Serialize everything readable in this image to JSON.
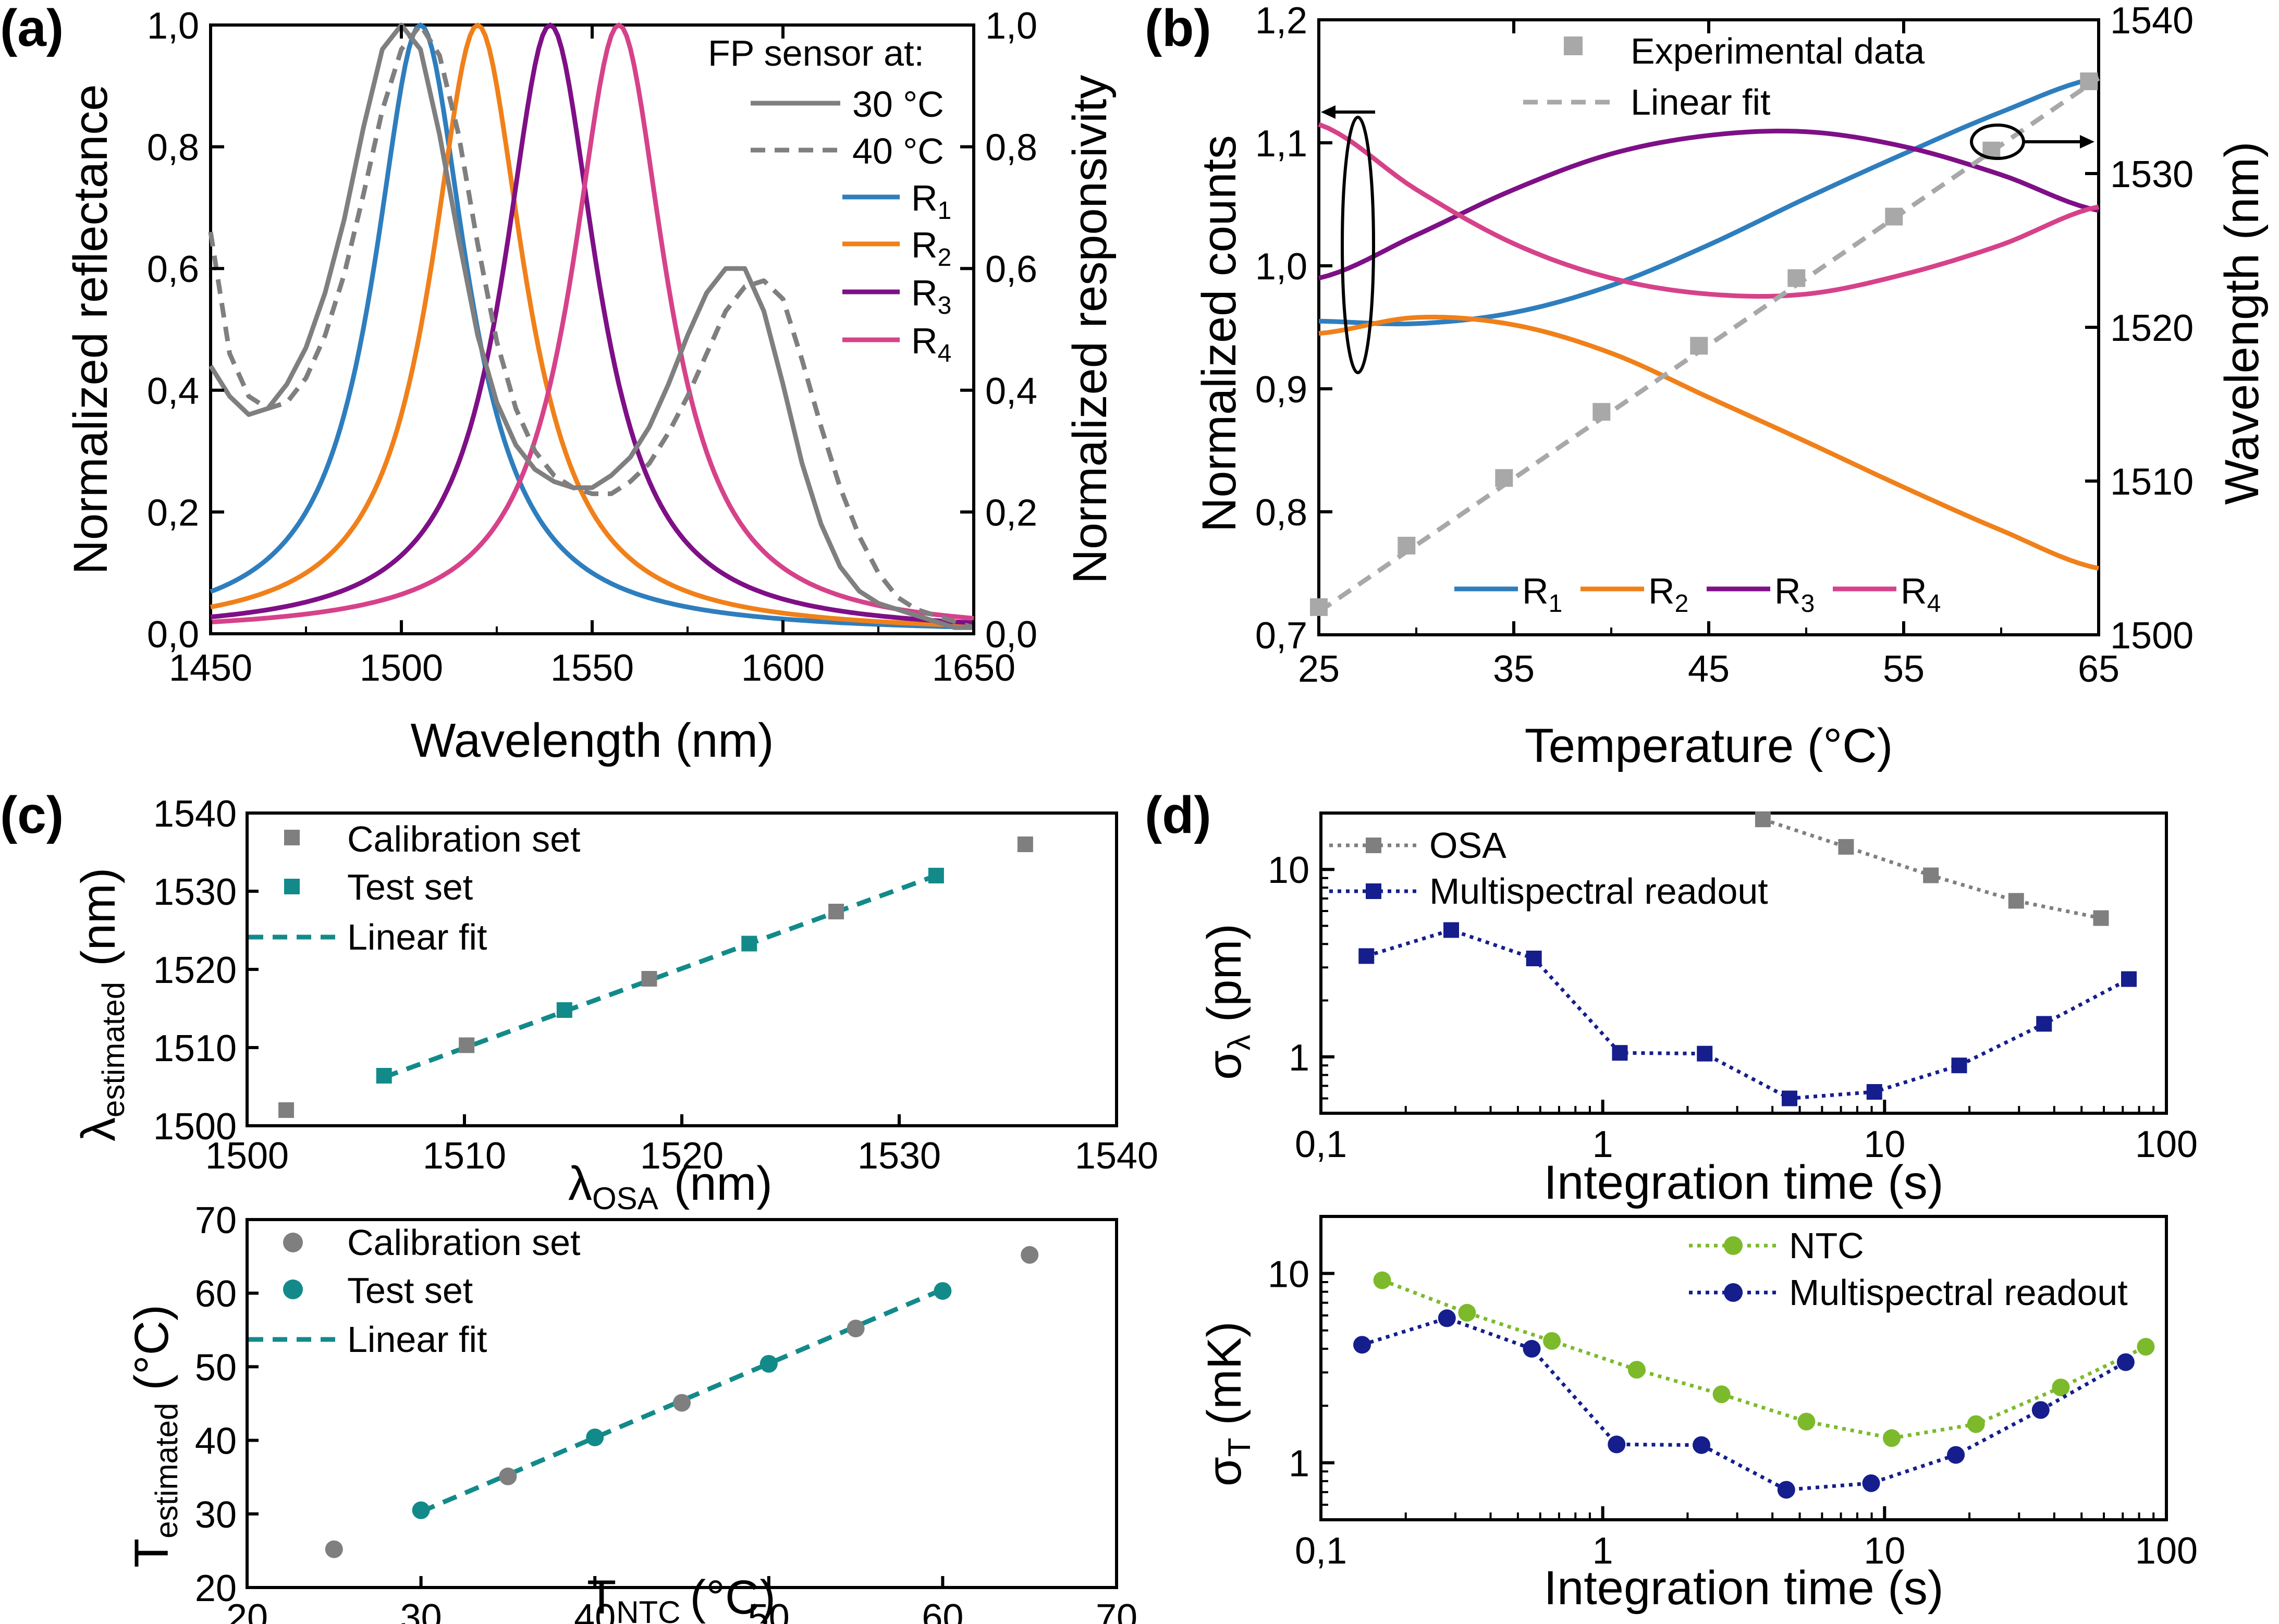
{
  "panels": {
    "a": "(a)",
    "b": "(b)",
    "c": "(c)",
    "d": "(d)"
  },
  "colors": {
    "R1": "#2e7ebe",
    "R2": "#f0801a",
    "R3": "#7e0f86",
    "R4": "#d6428a",
    "grey": "#7f7f7f",
    "lightgrey": "#a8a8a8",
    "teal": "#138a8a",
    "navy": "#151e8c",
    "green": "#7cba2b"
  },
  "chart_data": [
    {
      "id": "a",
      "type": "line",
      "xlabel": "Wavelength (nm)",
      "ylabel": "Normalized reflectance",
      "y2label": "Normalized responsivity",
      "xlim": [
        1450,
        1650
      ],
      "ylim": [
        0,
        1
      ],
      "y2lim": [
        0,
        1
      ],
      "xticks": [
        "1450",
        "1500",
        "1550",
        "1600",
        "1650"
      ],
      "yticks": [
        "0,0",
        "0,2",
        "0,4",
        "0,6",
        "0,8",
        "1,0"
      ],
      "legend_title": "FP sensor at:",
      "legend": [
        "30 °C",
        "40 °C",
        "R",
        "R",
        "R",
        "R"
      ],
      "legend_subs": [
        "1",
        "2",
        "3",
        "4"
      ],
      "series": [
        {
          "name": "30 °C",
          "dash": false,
          "x": [
            1450,
            1455,
            1460,
            1465,
            1470,
            1475,
            1480,
            1485,
            1490,
            1495,
            1500,
            1505,
            1510,
            1515,
            1520,
            1525,
            1530,
            1535,
            1540,
            1545,
            1550,
            1555,
            1560,
            1565,
            1570,
            1575,
            1580,
            1585,
            1590,
            1595,
            1600,
            1605,
            1610,
            1615,
            1620,
            1625,
            1630,
            1635,
            1640,
            1645,
            1650
          ],
          "y": [
            0.44,
            0.39,
            0.36,
            0.37,
            0.41,
            0.47,
            0.56,
            0.68,
            0.83,
            0.96,
            1.0,
            0.96,
            0.82,
            0.65,
            0.49,
            0.38,
            0.31,
            0.27,
            0.25,
            0.24,
            0.24,
            0.26,
            0.29,
            0.34,
            0.41,
            0.49,
            0.56,
            0.6,
            0.6,
            0.53,
            0.41,
            0.28,
            0.18,
            0.11,
            0.07,
            0.05,
            0.04,
            0.03,
            0.02,
            0.01,
            0.01
          ]
        },
        {
          "name": "40 °C",
          "dash": true,
          "x": [
            1450,
            1455,
            1460,
            1465,
            1470,
            1475,
            1480,
            1485,
            1490,
            1495,
            1500,
            1505,
            1510,
            1515,
            1520,
            1525,
            1530,
            1535,
            1540,
            1545,
            1550,
            1555,
            1560,
            1565,
            1570,
            1575,
            1580,
            1585,
            1590,
            1595,
            1600,
            1605,
            1610,
            1615,
            1620,
            1625,
            1630,
            1635,
            1640,
            1645,
            1650
          ],
          "y": [
            0.66,
            0.46,
            0.39,
            0.37,
            0.38,
            0.42,
            0.49,
            0.59,
            0.72,
            0.86,
            0.96,
            1.0,
            0.95,
            0.82,
            0.64,
            0.48,
            0.37,
            0.3,
            0.26,
            0.24,
            0.23,
            0.23,
            0.25,
            0.28,
            0.33,
            0.39,
            0.46,
            0.53,
            0.57,
            0.58,
            0.55,
            0.45,
            0.34,
            0.24,
            0.16,
            0.1,
            0.06,
            0.04,
            0.03,
            0.02,
            0.01
          ]
        },
        {
          "name": "R1",
          "peak": 1505,
          "hw": 15
        },
        {
          "name": "R2",
          "peak": 1520,
          "hw": 15
        },
        {
          "name": "R3",
          "peak": 1539,
          "hw": 15
        },
        {
          "name": "R4",
          "peak": 1557,
          "hw": 15
        }
      ]
    },
    {
      "id": "b",
      "type": "line",
      "xlabel": "Temperature (°C)",
      "ylabel": "Normalized counts",
      "y2label": "Wavelength (nm)",
      "xlim": [
        25,
        65
      ],
      "ylim": [
        0.7,
        1.2
      ],
      "y2lim": [
        1500,
        1540
      ],
      "xticks": [
        "25",
        "35",
        "45",
        "55",
        "65"
      ],
      "yticks": [
        "0,7",
        "0,8",
        "0,9",
        "1,0",
        "1,1",
        "1,2"
      ],
      "y2ticks": [
        "1500",
        "1510",
        "1520",
        "1530",
        "1540"
      ],
      "legend": [
        "Experimental data",
        "Linear fit"
      ],
      "legend_bottom": [
        "R",
        "R",
        "R",
        "R"
      ],
      "legend_subs": [
        "1",
        "2",
        "3",
        "4"
      ],
      "series": [
        {
          "name": "R1",
          "x": [
            25,
            30,
            35,
            40,
            45,
            50,
            55,
            60,
            65
          ],
          "y": [
            0.955,
            0.953,
            0.962,
            0.984,
            1.017,
            1.055,
            1.091,
            1.125,
            1.153
          ]
        },
        {
          "name": "R2",
          "x": [
            25,
            30,
            35,
            40,
            45,
            50,
            55,
            60,
            65
          ],
          "y": [
            0.945,
            0.958,
            0.952,
            0.929,
            0.893,
            0.857,
            0.82,
            0.785,
            0.754
          ]
        },
        {
          "name": "R3",
          "x": [
            25,
            30,
            35,
            40,
            45,
            50,
            55,
            60,
            65
          ],
          "y": [
            0.99,
            1.025,
            1.062,
            1.091,
            1.106,
            1.109,
            1.097,
            1.074,
            1.045
          ]
        },
        {
          "name": "R4",
          "x": [
            25,
            30,
            35,
            40,
            45,
            50,
            55,
            60,
            65
          ],
          "y": [
            1.115,
            1.062,
            1.018,
            0.99,
            0.977,
            0.977,
            0.993,
            1.017,
            1.048
          ]
        },
        {
          "name": "Experimental data",
          "x": [
            25,
            29.5,
            34.5,
            39.5,
            44.5,
            49.5,
            54.5,
            59.5,
            64.5
          ],
          "y2": [
            1501.8,
            1505.8,
            1510.2,
            1514.5,
            1518.8,
            1523.2,
            1527.2,
            1531.5,
            1536
          ]
        },
        {
          "name": "Linear fit",
          "x": [
            25,
            65
          ],
          "y2": [
            1501.5,
            1536.2
          ]
        }
      ]
    },
    {
      "id": "c-top",
      "type": "scatter",
      "xlabel": "λ",
      "xlabel_sub": "OSA",
      "xlabel_tail": "(nm)",
      "ylabel": "λ",
      "ylabel_sub": "estimated",
      "ylabel_tail": "(nm)",
      "xlim": [
        1500,
        1540
      ],
      "ylim": [
        1500,
        1540
      ],
      "xticks": [
        "1500",
        "1510",
        "1520",
        "1530",
        "1540"
      ],
      "yticks": [
        "1500",
        "1510",
        "1520",
        "1530",
        "1540"
      ],
      "legend": [
        "Calibration set",
        "Test set",
        "Linear fit"
      ],
      "series": [
        {
          "name": "Calibration set",
          "x": [
            1501.8,
            1510.1,
            1518.5,
            1527.1,
            1535.8
          ],
          "y": [
            1502,
            1510.3,
            1518.8,
            1527.4,
            1536
          ]
        },
        {
          "name": "Test set",
          "x": [
            1506.3,
            1514.6,
            1523.1,
            1531.7
          ],
          "y": [
            1506.4,
            1514.8,
            1523.3,
            1532
          ]
        },
        {
          "name": "Linear fit",
          "x": [
            1506.3,
            1531.7
          ],
          "y": [
            1506.2,
            1532
          ]
        }
      ]
    },
    {
      "id": "c-bottom",
      "type": "scatter",
      "xlabel": "T",
      "xlabel_sub": "NTC",
      "xlabel_tail": "(°C)",
      "ylabel": "T",
      "ylabel_sub": "estimated",
      "ylabel_tail": "(°C)",
      "xlim": [
        20,
        70
      ],
      "ylim": [
        20,
        70
      ],
      "xticks": [
        "20",
        "30",
        "40",
        "50",
        "60",
        "70"
      ],
      "yticks": [
        "20",
        "30",
        "40",
        "50",
        "60",
        "70"
      ],
      "legend": [
        "Calibration set",
        "Test set",
        "Linear fit"
      ],
      "series": [
        {
          "name": "Calibration set",
          "x": [
            25,
            35,
            45,
            55,
            65
          ],
          "y": [
            25.2,
            35.1,
            45.1,
            55.2,
            65.2
          ]
        },
        {
          "name": "Test set",
          "x": [
            30,
            40,
            50,
            60
          ],
          "y": [
            30.5,
            40.4,
            50.4,
            60.3
          ]
        },
        {
          "name": "Linear fit",
          "x": [
            30,
            60
          ],
          "y": [
            30.3,
            60.5
          ]
        }
      ]
    },
    {
      "id": "d-top",
      "type": "line",
      "xscale": "log",
      "yscale": "log",
      "xlabel": "Integration time (s)",
      "ylabel": "σ",
      "ylabel_sub": "λ",
      "ylabel_tail": "(pm)",
      "xlim": [
        0.1,
        100
      ],
      "ylim": [
        0.5,
        20
      ],
      "xticks": [
        "0,1",
        "1",
        "10",
        "100"
      ],
      "yticks": [
        "1",
        "10"
      ],
      "legend": [
        "OSA",
        "Multispectral readout"
      ],
      "series": [
        {
          "name": "OSA",
          "x": [
            3.7,
            7.3,
            14.6,
            29.3,
            58.6
          ],
          "y": [
            18.5,
            13.2,
            9.3,
            6.8,
            5.5
          ]
        },
        {
          "name": "Multispectral readout",
          "x": [
            0.145,
            0.29,
            0.57,
            1.15,
            2.3,
            4.6,
            9.2,
            18.4,
            36.8,
            73.6
          ],
          "y": [
            3.45,
            4.75,
            3.35,
            1.05,
            1.04,
            0.6,
            0.65,
            0.9,
            1.5,
            2.6
          ]
        }
      ]
    },
    {
      "id": "d-bottom",
      "type": "line",
      "xscale": "log",
      "yscale": "log",
      "xlabel": "Integration time (s)",
      "ylabel": "σ",
      "ylabel_sub": "T",
      "ylabel_tail": "(mK)",
      "xlim": [
        0.1,
        100
      ],
      "ylim": [
        0.5,
        20
      ],
      "xticks": [
        "0,1",
        "1",
        "10",
        "100"
      ],
      "yticks": [
        "1",
        "10"
      ],
      "legend": [
        "NTC",
        "Multispectral readout"
      ],
      "series": [
        {
          "name": "NTC",
          "x": [
            0.165,
            0.33,
            0.66,
            1.32,
            2.64,
            5.28,
            10.6,
            21.1,
            42.2,
            84.5
          ],
          "y": [
            9.2,
            6.2,
            4.4,
            3.1,
            2.3,
            1.65,
            1.35,
            1.6,
            2.5,
            4.1
          ]
        },
        {
          "name": "Multispectral readout",
          "x": [
            0.14,
            0.28,
            0.56,
            1.12,
            2.24,
            4.48,
            8.96,
            17.9,
            35.8,
            71.7
          ],
          "y": [
            4.2,
            5.8,
            4.0,
            1.25,
            1.24,
            0.72,
            0.78,
            1.1,
            1.9,
            3.4
          ]
        }
      ]
    }
  ]
}
